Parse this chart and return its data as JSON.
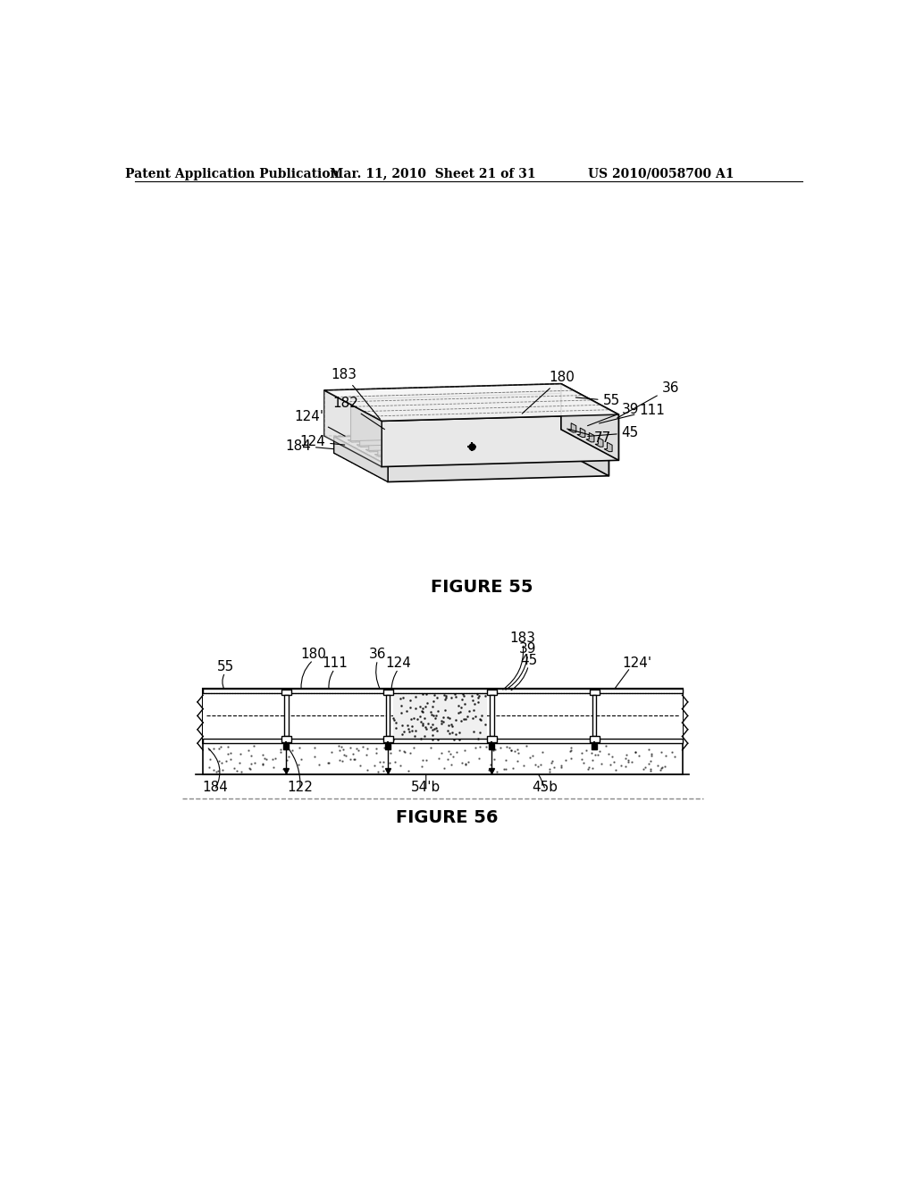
{
  "bg_color": "#ffffff",
  "header_left": "Patent Application Publication",
  "header_mid": "Mar. 11, 2010  Sheet 21 of 31",
  "header_right": "US 2010/0058700 A1",
  "fig55_title": "FIGURE 55",
  "fig56_title": "FIGURE 56",
  "header_fontsize": 10,
  "fig_title_fontsize": 14,
  "label_fontsize": 11
}
